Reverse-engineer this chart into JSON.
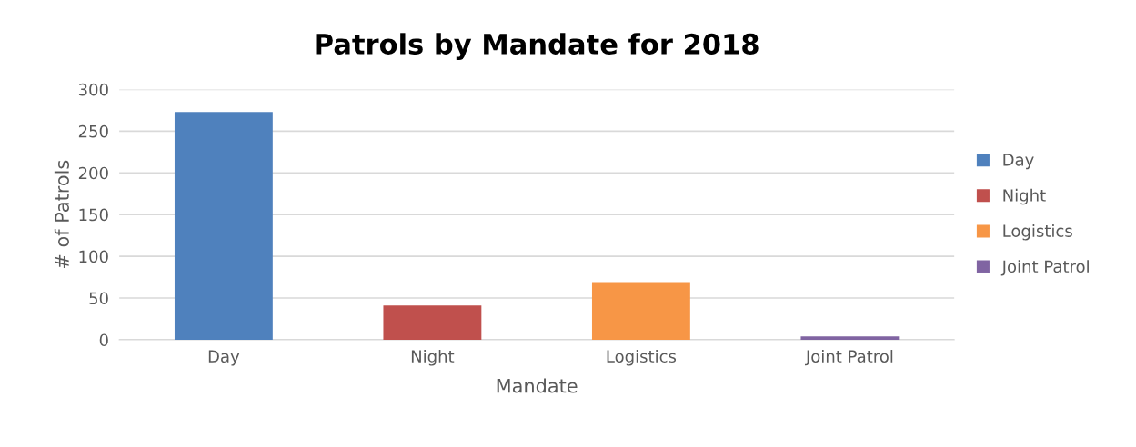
{
  "chart_data": {
    "type": "bar",
    "title": "Patrols by Mandate for 2018",
    "xlabel": "Mandate",
    "ylabel": "# of Patrols",
    "categories": [
      "Day",
      "Night",
      "Logistics",
      "Joint Patrol"
    ],
    "series": [
      {
        "name": "Day",
        "color": "#4f81bd",
        "values": [
          273,
          null,
          null,
          null
        ]
      },
      {
        "name": "Night",
        "color": "#c0504d",
        "values": [
          null,
          41,
          null,
          null
        ]
      },
      {
        "name": "Logistics",
        "color": "#f79646",
        "values": [
          null,
          null,
          69,
          null
        ]
      },
      {
        "name": "Joint Patrol",
        "color": "#8064a2",
        "values": [
          null,
          null,
          null,
          4
        ]
      }
    ],
    "ylim": [
      0,
      300
    ],
    "yticks": [
      0,
      50,
      100,
      150,
      200,
      250,
      300
    ],
    "grid": "y",
    "legend": "right"
  }
}
